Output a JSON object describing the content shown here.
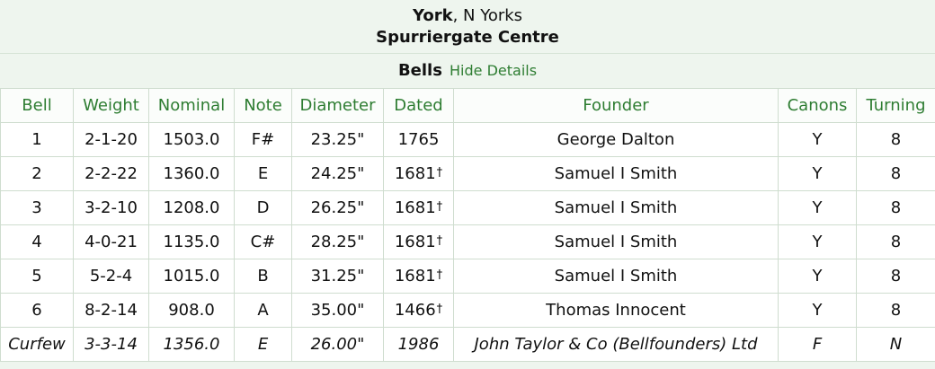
{
  "header": {
    "town": "York",
    "county": ", N Yorks",
    "church": "Spurriergate Centre"
  },
  "section": {
    "title": "Bells",
    "toggle_label": "Hide Details"
  },
  "table": {
    "columns": [
      "Bell",
      "Weight",
      "Nominal",
      "Note",
      "Diameter",
      "Dated",
      "Founder",
      "Canons",
      "Turning"
    ],
    "rows": [
      {
        "bell": "1",
        "weight": "2-1-20",
        "nominal": "1503.0",
        "note": "F#",
        "diameter": "23.25\"",
        "dated": "1765",
        "dagger": "",
        "founder": "George Dalton",
        "canons": "Y",
        "turning": "8",
        "italic": false
      },
      {
        "bell": "2",
        "weight": "2-2-22",
        "nominal": "1360.0",
        "note": "E",
        "diameter": "24.25\"",
        "dated": "1681",
        "dagger": "†",
        "founder": "Samuel I Smith",
        "canons": "Y",
        "turning": "8",
        "italic": false
      },
      {
        "bell": "3",
        "weight": "3-2-10",
        "nominal": "1208.0",
        "note": "D",
        "diameter": "26.25\"",
        "dated": "1681",
        "dagger": "†",
        "founder": "Samuel I Smith",
        "canons": "Y",
        "turning": "8",
        "italic": false
      },
      {
        "bell": "4",
        "weight": "4-0-21",
        "nominal": "1135.0",
        "note": "C#",
        "diameter": "28.25\"",
        "dated": "1681",
        "dagger": "†",
        "founder": "Samuel I Smith",
        "canons": "Y",
        "turning": "8",
        "italic": false
      },
      {
        "bell": "5",
        "weight": "5-2-4",
        "nominal": "1015.0",
        "note": "B",
        "diameter": "31.25\"",
        "dated": "1681",
        "dagger": "†",
        "founder": "Samuel I Smith",
        "canons": "Y",
        "turning": "8",
        "italic": false
      },
      {
        "bell": "6",
        "weight": "8-2-14",
        "nominal": "908.0",
        "note": "A",
        "diameter": "35.00\"",
        "dated": "1466",
        "dagger": "†",
        "founder": "Thomas Innocent",
        "canons": "Y",
        "turning": "8",
        "italic": false
      },
      {
        "bell": "Curfew",
        "weight": "3-3-14",
        "nominal": "1356.0",
        "note": "E",
        "diameter": "26.00\"",
        "dated": "1986",
        "dagger": "",
        "founder": "John Taylor & Co (Bellfounders) Ltd",
        "canons": "F",
        "turning": "N",
        "italic": true
      }
    ]
  },
  "colors": {
    "accent": "#2e7d32",
    "background": "#eef5ee",
    "border": "#cfddcf"
  }
}
